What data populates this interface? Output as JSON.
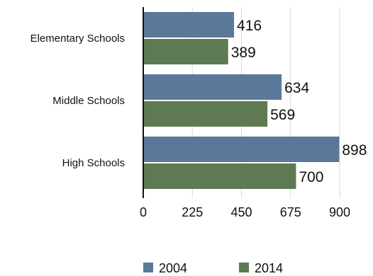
{
  "chart_data": {
    "type": "bar",
    "orientation": "horizontal",
    "categories": [
      "Elementary Schools",
      "Middle Schools",
      "High Schools"
    ],
    "series": [
      {
        "name": "2004",
        "values": [
          416,
          634,
          898
        ],
        "color": "#5b7898"
      },
      {
        "name": "2014",
        "values": [
          389,
          569,
          700
        ],
        "color": "#5e7a52"
      }
    ],
    "xticks": [
      "0",
      "225",
      "450",
      "675",
      "900"
    ],
    "xlim": [
      0,
      900
    ],
    "grid": "vertical",
    "legend_position": "bottom"
  }
}
